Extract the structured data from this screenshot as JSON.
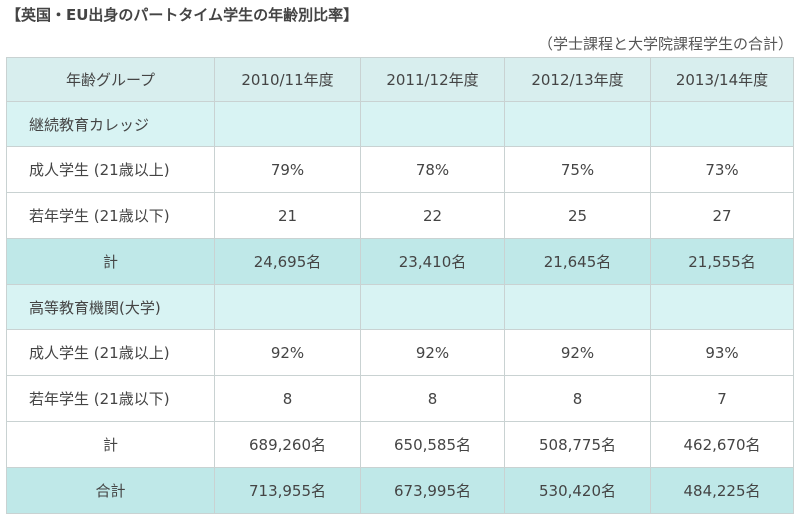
{
  "title": "【英国・EU出身のパートタイム学生の年齢別比率】",
  "note": "（学士課程と大学院課程学生の合計）",
  "table": {
    "headers": [
      "年齢グループ",
      "2010/11年度",
      "2011/12年度",
      "2012/13年度",
      "2013/14年度"
    ],
    "section1": {
      "label": "継続教育カレッジ",
      "rows": [
        {
          "label": "成人学生 (21歳以上)",
          "values": [
            "79%",
            "78%",
            "75%",
            "73%"
          ]
        },
        {
          "label": "若年学生 (21歳以下)",
          "values": [
            "21",
            "22",
            "25",
            "27"
          ]
        }
      ],
      "total": {
        "label": "計",
        "values": [
          "24,695名",
          "23,410名",
          "21,645名",
          "21,555名"
        ]
      }
    },
    "section2": {
      "label": "高等教育機関(大学)",
      "rows": [
        {
          "label": "成人学生 (21歳以上)",
          "values": [
            "92%",
            "92%",
            "92%",
            "93%"
          ]
        },
        {
          "label": "若年学生 (21歳以下)",
          "values": [
            "8",
            "8",
            "8",
            "7"
          ]
        }
      ],
      "total": {
        "label": "計",
        "values": [
          "689,260名",
          "650,585名",
          "508,775名",
          "462,670名"
        ]
      }
    },
    "grand_total": {
      "label": "合計",
      "values": [
        "713,955名",
        "673,995名",
        "530,420名",
        "484,225名"
      ]
    }
  }
}
